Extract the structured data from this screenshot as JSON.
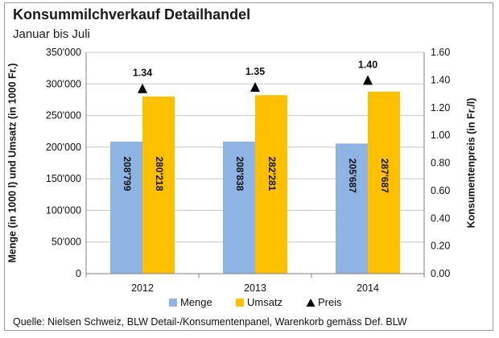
{
  "chart_data": {
    "type": "bar",
    "title": "Konsummilchverkauf Detailhandel",
    "subtitle": "Januar bis Juli",
    "categories": [
      "2012",
      "2013",
      "2014"
    ],
    "series": [
      {
        "name": "Menge",
        "axis": "left",
        "color": "#8EB4E3",
        "values": [
          208799,
          208838,
          205687
        ],
        "labels": [
          "208'799",
          "208'838",
          "205'687"
        ]
      },
      {
        "name": "Umsatz",
        "axis": "left",
        "color": "#FFC000",
        "values": [
          280218,
          282281,
          287687
        ],
        "labels": [
          "280'218",
          "282'281",
          "287'687"
        ]
      },
      {
        "name": "Preis",
        "axis": "right",
        "marker": "triangle",
        "color": "#000000",
        "values": [
          1.34,
          1.35,
          1.4
        ],
        "labels": [
          "1.34",
          "1.35",
          "1.40"
        ]
      }
    ],
    "y_left": {
      "label": "Menge (in 1000 l) und Umsatz (in 1000 Fr.)",
      "ylim": [
        0,
        350000
      ],
      "ticks": [
        "0",
        "50'000",
        "100'000",
        "150'000",
        "200'000",
        "250'000",
        "300'000",
        "350'000"
      ]
    },
    "y_right": {
      "label": "Konsumentenpreis (in Fr./l)",
      "ylim": [
        0,
        1.6
      ],
      "ticks": [
        "0.00",
        "0.20",
        "0.40",
        "0.60",
        "0.80",
        "1.00",
        "1.20",
        "1.40",
        "1.60"
      ]
    },
    "grid": true,
    "legend_position": "bottom"
  },
  "source_note": "Quelle: Nielsen Schweiz, BLW Detail-/Konsumentenpanel, Warenkorb gemäss Def. BLW"
}
